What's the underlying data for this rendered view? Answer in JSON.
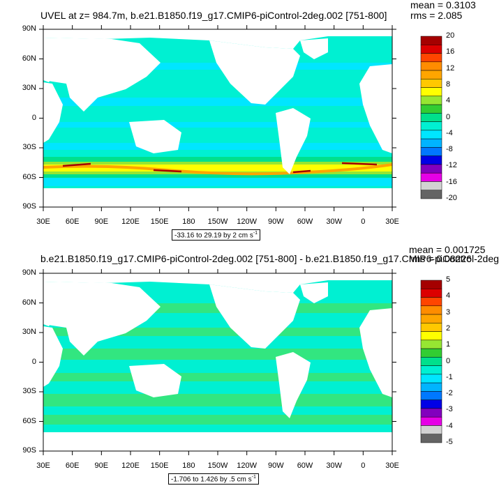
{
  "top": {
    "title": "UVEL at z= 984.7m, b.e21.B1850.f19_g17.CMIP6-piControl-2deg.002 [751-800]",
    "mean": "mean = 0.3103",
    "rms": "rms = 2.085",
    "range_text": "-33.16 to 29.19 by 2 cm s",
    "range_sup": "-1",
    "colorbar_labels": [
      "20",
      "16",
      "12",
      "8",
      "4",
      "0",
      "-4",
      "-8",
      "-12",
      "-16",
      "-20"
    ],
    "colors": [
      "#a50000",
      "#dc0000",
      "#ff4500",
      "#ff8c00",
      "#ffa500",
      "#ffc800",
      "#ffff00",
      "#96e632",
      "#32cd32",
      "#00e08c",
      "#00f0d2",
      "#00e6ff",
      "#00b4ff",
      "#0078ff",
      "#0000e6",
      "#8200be",
      "#e600e6",
      "#d2d2d2",
      "#646464"
    ]
  },
  "bottom": {
    "title": "b.e21.B1850.f19_g17.CMIP6-piControl-2deg.002 [751-800] - b.e21.B1850.f19_g17.CMIP6-piControl-2deg",
    "mean": "mean = 0.001725",
    "rms": "rms = 0.08226",
    "range_text": "-1.706 to 1.426 by .5 cm s",
    "range_sup": "-1",
    "colorbar_labels": [
      "5",
      "4",
      "3",
      "2",
      "1",
      "0",
      "-1",
      "-2",
      "-3",
      "-4",
      "-5"
    ],
    "colors": [
      "#a50000",
      "#dc0000",
      "#ff4500",
      "#ff8c00",
      "#ffa500",
      "#ffc800",
      "#ffff00",
      "#96e632",
      "#32cd32",
      "#00e08c",
      "#00f0d2",
      "#00e6ff",
      "#00b4ff",
      "#0078ff",
      "#0000e6",
      "#8200be",
      "#e600e6",
      "#d2d2d2",
      "#646464"
    ]
  },
  "lat_labels": [
    "90N",
    "60N",
    "30N",
    "0",
    "30S",
    "60S",
    "90S"
  ],
  "lon_labels": [
    "30E",
    "60E",
    "90E",
    "120E",
    "150E",
    "180",
    "150W",
    "120W",
    "90W",
    "60W",
    "30W",
    "0",
    "30E"
  ],
  "map_colors": {
    "ocean_light": "#00f0d2",
    "ocean_green": "#32e680",
    "ocean_cyan": "#00e6ff",
    "land": "#ffffff",
    "jet_yellow": "#ffff00",
    "jet_orange": "#ffa500",
    "jet_red": "#a50000"
  }
}
